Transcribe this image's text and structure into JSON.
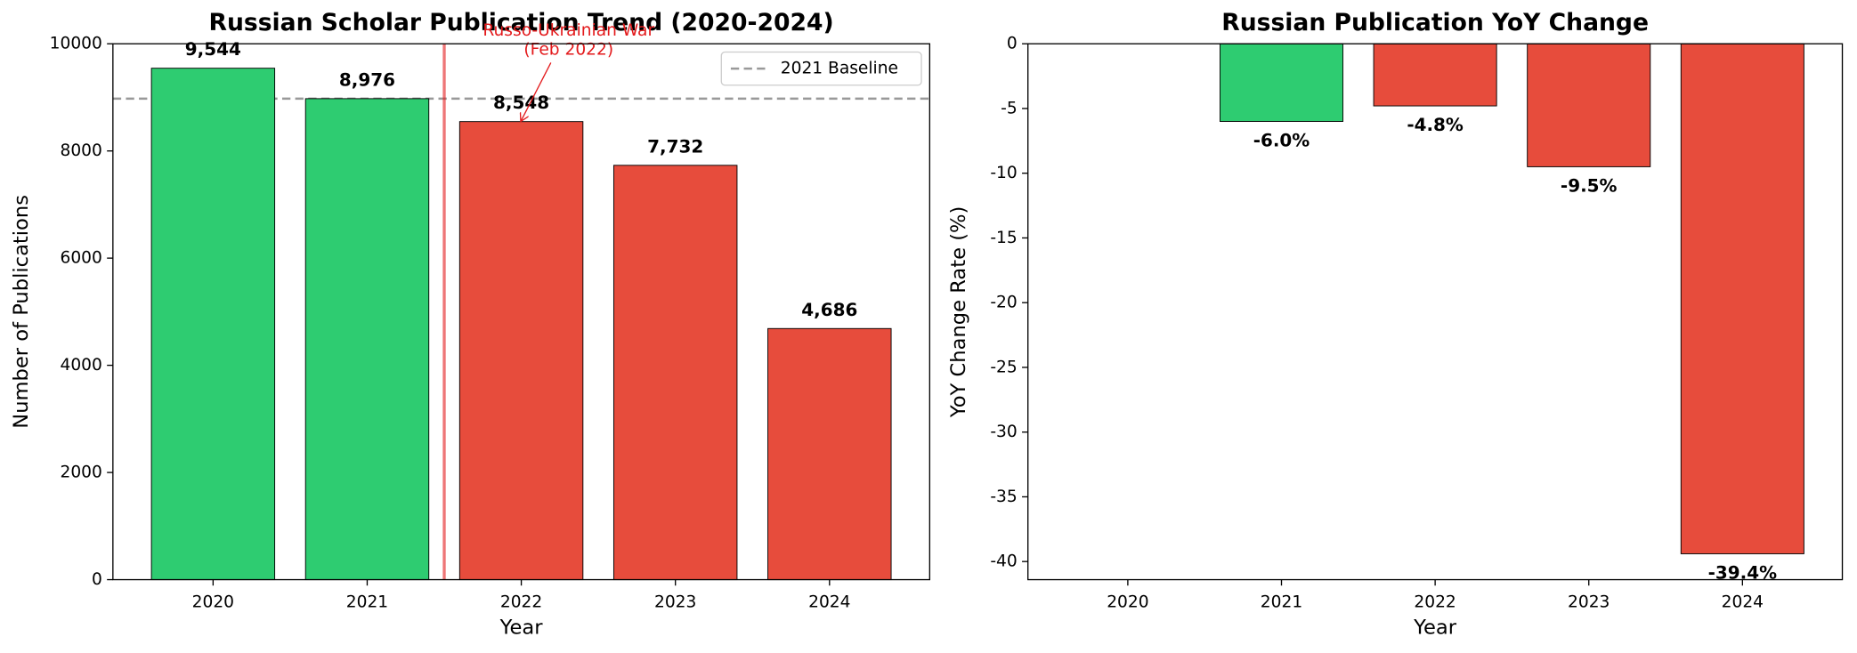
{
  "chart_data": [
    {
      "type": "bar",
      "title": "Russian Scholar Publication Trend (2020-2024)",
      "x_label": "Year",
      "y_label": "Number of Publications",
      "categories": [
        "2020",
        "2021",
        "2022",
        "2023",
        "2024"
      ],
      "values": [
        9544,
        8976,
        8548,
        7732,
        4686
      ],
      "value_labels": [
        "9,544",
        "8,976",
        "8,548",
        "7,732",
        "4,686"
      ],
      "colors": [
        "#2ecc71",
        "#2ecc71",
        "#e74c3c",
        "#e74c3c",
        "#e74c3c"
      ],
      "ylim": [
        0,
        10000
      ],
      "yticks": [
        0,
        2000,
        4000,
        6000,
        8000,
        10000
      ],
      "baseline": {
        "name": "2021 Baseline",
        "value": 8976,
        "color": "#999999"
      },
      "legend": "upper right",
      "annotation": [
        "Russo-Ukrainian War",
        "(Feb 2022)"
      ]
    },
    {
      "type": "bar",
      "title": "Russian Publication YoY Change",
      "x_label": "Year",
      "y_label": "YoY Change Rate (%)",
      "categories": [
        "2020",
        "2021",
        "2022",
        "2023",
        "2024"
      ],
      "values": [
        null,
        -6.0,
        -4.8,
        -9.5,
        -39.4
      ],
      "value_labels": [
        null,
        "-6.0%",
        "-4.8%",
        "-9.5%",
        "-39.4%"
      ],
      "colors": [
        null,
        "#2ecc71",
        "#e74c3c",
        "#e74c3c",
        "#e74c3c"
      ],
      "ylim": [
        -41.4,
        0
      ],
      "yticks": [
        0,
        -5,
        -10,
        -15,
        -20,
        -25,
        -30,
        -35,
        -40
      ]
    }
  ]
}
